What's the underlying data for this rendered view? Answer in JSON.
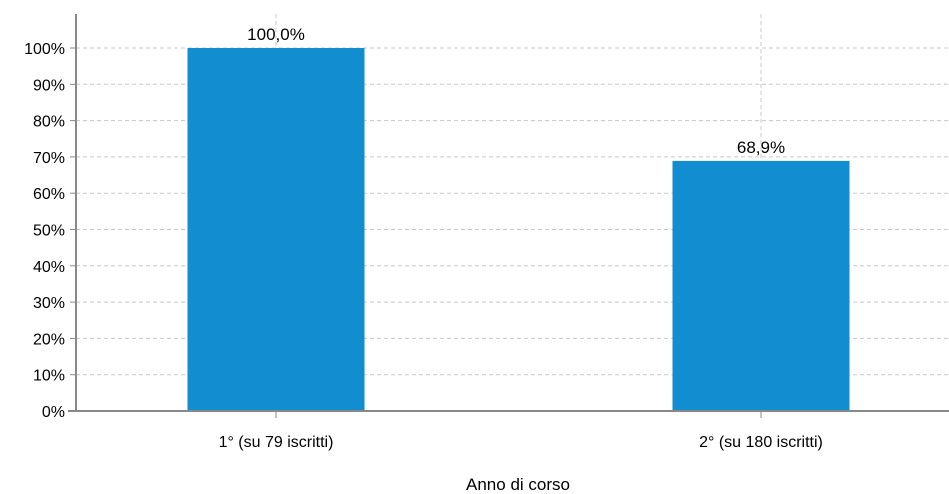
{
  "chart_data": {
    "type": "bar",
    "categories": [
      "1° (su 79 iscritti)",
      "2° (su 180 iscritti)"
    ],
    "values": [
      100.0,
      68.9
    ],
    "value_labels": [
      "100,0%",
      "68,9%"
    ],
    "title": "",
    "xlabel": "Anno di corso",
    "ylabel": "",
    "ylim": [
      0,
      100
    ],
    "y_ticks": [
      0,
      10,
      20,
      30,
      40,
      50,
      60,
      70,
      80,
      90,
      100
    ],
    "y_tick_labels": [
      "0%",
      "10%",
      "20%",
      "30%",
      "40%",
      "50%",
      "60%",
      "70%",
      "80%",
      "90%",
      "100%"
    ],
    "grid": true,
    "legend": "none",
    "bar_color": "#118dd0",
    "axis_color": "#888888",
    "grid_color": "#c8c8c8"
  }
}
